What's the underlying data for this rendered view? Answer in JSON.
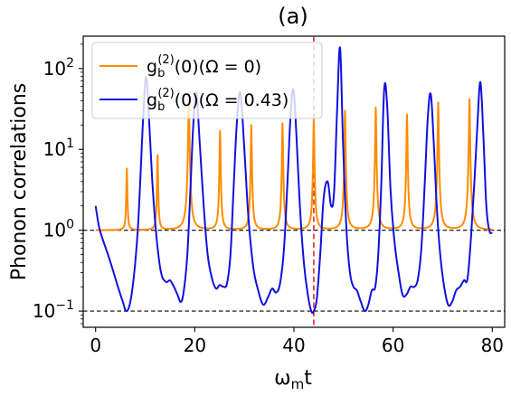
{
  "chart_data": {
    "type": "line",
    "title": "(a)",
    "xlabel": "ωₘt",
    "ylabel": "Phonon correlations",
    "xlim": [
      -2.5,
      82.5
    ],
    "ylim_log10": [
      -1.2,
      2.4
    ],
    "yscale": "log",
    "grid": false,
    "legend_position": "upper-left",
    "x_ticks": [
      {
        "value": 0,
        "label": "0"
      },
      {
        "value": 20,
        "label": "20"
      },
      {
        "value": 40,
        "label": "40"
      },
      {
        "value": 60,
        "label": "60"
      },
      {
        "value": 80,
        "label": "80"
      }
    ],
    "y_ticks": [
      {
        "value": 0.1,
        "base": "10",
        "exp": "−1"
      },
      {
        "value": 1,
        "base": "10",
        "exp": "0"
      },
      {
        "value": 10,
        "base": "10",
        "exp": "1"
      },
      {
        "value": 100,
        "base": "10",
        "exp": "2"
      }
    ],
    "reference_lines": {
      "horizontal": [
        1,
        0.1
      ],
      "horizontal_color": "#000000",
      "vertical": 44,
      "vertical_color": "#e8191b"
    },
    "series": [
      {
        "name": "g_b^(2)(0)(Ω = 0)",
        "legend_main": "g",
        "legend_sub": "b",
        "legend_sup": "(2)",
        "legend_rest": "(0)(Ω = 0)",
        "color": "#ff8c00",
        "baseline": 1.0,
        "peaks": [
          {
            "x": 6.3,
            "y": 5.8
          },
          {
            "x": 12.5,
            "y": 8.5
          },
          {
            "x": 18.8,
            "y": 50
          },
          {
            "x": 25.1,
            "y": 17
          },
          {
            "x": 31.4,
            "y": 20
          },
          {
            "x": 37.7,
            "y": 21
          },
          {
            "x": 44.0,
            "y": 24
          },
          {
            "x": 50.3,
            "y": 30
          },
          {
            "x": 56.5,
            "y": 33
          },
          {
            "x": 62.8,
            "y": 27
          },
          {
            "x": 69.1,
            "y": 38
          },
          {
            "x": 75.4,
            "y": 42
          }
        ]
      },
      {
        "name": "g_b^(2)(0)(Ω = 0.43)",
        "legend_main": "g",
        "legend_sub": "b",
        "legend_sup": "(2)",
        "legend_rest": "(0)(Ω = 0.43)",
        "color": "#1010e0",
        "x": [
          0,
          0.7,
          1.5,
          2.5,
          3.5,
          4.5,
          5.5,
          6.2,
          7.0,
          7.8,
          8.5,
          9.0,
          9.6,
          10.2,
          10.8,
          11.5,
          12.3,
          13.2,
          14.2,
          15.0,
          15.8,
          16.5,
          17.2,
          17.8,
          18.5,
          19.1,
          19.7,
          20.3,
          21.0,
          21.8,
          22.6,
          23.5,
          24.3,
          25.0,
          25.8,
          26.5,
          27.2,
          27.8,
          28.5,
          29.2,
          30.0,
          30.8,
          31.8,
          32.8,
          33.8,
          34.8,
          35.6,
          36.4,
          37.2,
          38.0,
          38.7,
          39.3,
          39.9,
          40.5,
          41.2,
          42.0,
          42.8,
          43.5,
          44.0,
          44.6,
          45.3,
          46.0,
          46.8,
          47.5,
          48.1,
          48.7,
          49.3,
          49.9,
          50.6,
          51.3,
          52.0,
          52.7,
          53.5,
          54.3,
          55.0,
          55.7,
          56.4,
          57.0,
          57.6,
          58.2,
          58.8,
          59.5,
          60.3,
          61.1,
          61.9,
          62.7,
          63.5,
          64.3,
          65.0,
          65.7,
          66.4,
          67.0,
          67.6,
          68.2,
          68.8,
          69.5,
          70.3,
          71.1,
          71.9,
          72.7,
          73.5,
          74.3,
          75.0,
          75.7,
          76.4,
          77.0,
          77.6,
          78.2,
          78.8,
          79.4,
          80.0
        ],
        "y": [
          2.0,
          1.1,
          0.75,
          0.5,
          0.32,
          0.2,
          0.13,
          0.1,
          0.13,
          0.3,
          1.0,
          4.0,
          25,
          78,
          22,
          3.5,
          0.8,
          0.3,
          0.23,
          0.24,
          0.2,
          0.16,
          0.13,
          0.18,
          0.5,
          3.0,
          20,
          50,
          12,
          2.0,
          0.5,
          0.25,
          0.19,
          0.21,
          0.2,
          0.22,
          0.5,
          3.0,
          22,
          50,
          10,
          1.5,
          0.35,
          0.18,
          0.12,
          0.15,
          0.19,
          0.17,
          0.22,
          0.6,
          4.0,
          25,
          55,
          15,
          2.0,
          0.4,
          0.16,
          0.1,
          0.1,
          0.14,
          0.5,
          2.5,
          4.0,
          2.0,
          3.0,
          30,
          180,
          12,
          1.0,
          0.3,
          0.2,
          0.18,
          0.13,
          0.1,
          0.12,
          0.18,
          0.2,
          0.5,
          3.5,
          55,
          35,
          3.0,
          0.7,
          0.3,
          0.16,
          0.16,
          0.2,
          0.2,
          0.25,
          0.6,
          4.0,
          25,
          48,
          12,
          2.0,
          0.5,
          0.2,
          0.12,
          0.13,
          0.18,
          0.2,
          0.24,
          0.25,
          0.8,
          4.0,
          20,
          68,
          15,
          2.0,
          1.0,
          0.92
        ]
      }
    ]
  }
}
